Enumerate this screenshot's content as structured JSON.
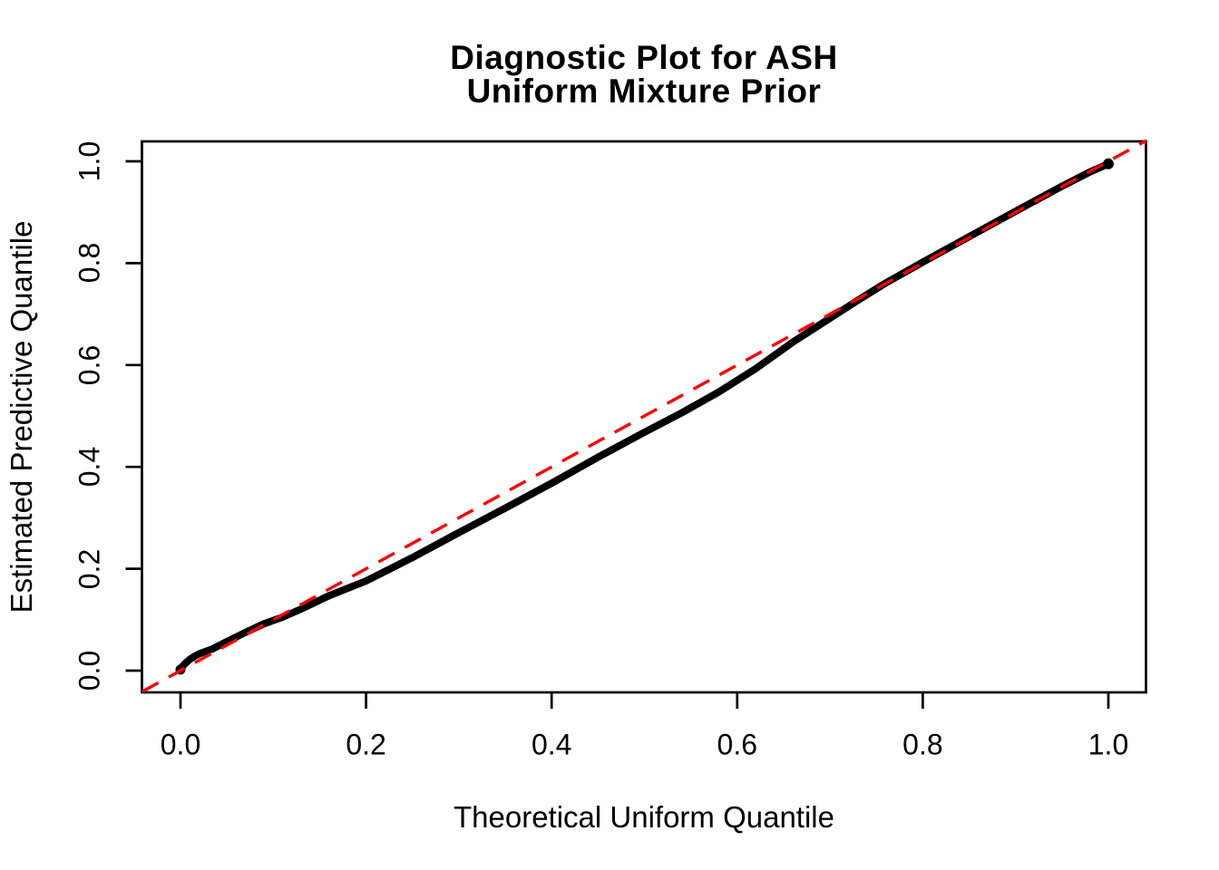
{
  "chart_data": {
    "type": "scatter",
    "title_lines": [
      "Diagnostic Plot for ASH",
      "Uniform Mixture Prior"
    ],
    "xlabel": "Theoretical Uniform Quantile",
    "ylabel": "Estimated Predictive Quantile",
    "xlim": [
      -0.042,
      1.042
    ],
    "ylim": [
      -0.042,
      1.042
    ],
    "x_tick_values": [
      0.0,
      0.2,
      0.4,
      0.6,
      0.8,
      1.0
    ],
    "y_tick_values": [
      0.0,
      0.2,
      0.4,
      0.6,
      0.8,
      1.0
    ],
    "x_tick_labels": [
      "0.0",
      "0.2",
      "0.4",
      "0.6",
      "0.8",
      "1.0"
    ],
    "y_tick_labels": [
      "0.0",
      "0.2",
      "0.4",
      "0.6",
      "0.8",
      "1.0"
    ],
    "grid": false,
    "legend": "none",
    "colors": {
      "points": "#000000",
      "reference_line": "#FF0000",
      "axis": "#000000",
      "background": "#FFFFFF"
    },
    "series": [
      {
        "name": "estimated-vs-theoretical-quantiles",
        "style": "dense-points",
        "color": "#000000",
        "points": [
          [
            0.0,
            0.002
          ],
          [
            0.002,
            0.008
          ],
          [
            0.005,
            0.014
          ],
          [
            0.01,
            0.022
          ],
          [
            0.015,
            0.028
          ],
          [
            0.02,
            0.033
          ],
          [
            0.035,
            0.043
          ],
          [
            0.05,
            0.057
          ],
          [
            0.07,
            0.075
          ],
          [
            0.09,
            0.092
          ],
          [
            0.11,
            0.105
          ],
          [
            0.13,
            0.121
          ],
          [
            0.16,
            0.147
          ],
          [
            0.2,
            0.176
          ],
          [
            0.25,
            0.222
          ],
          [
            0.3,
            0.271
          ],
          [
            0.35,
            0.319
          ],
          [
            0.4,
            0.368
          ],
          [
            0.45,
            0.419
          ],
          [
            0.5,
            0.468
          ],
          [
            0.54,
            0.506
          ],
          [
            0.58,
            0.547
          ],
          [
            0.62,
            0.593
          ],
          [
            0.66,
            0.645
          ],
          [
            0.7,
            0.692
          ],
          [
            0.73,
            0.727
          ],
          [
            0.76,
            0.761
          ],
          [
            0.8,
            0.802
          ],
          [
            0.85,
            0.852
          ],
          [
            0.9,
            0.902
          ],
          [
            0.95,
            0.951
          ],
          [
            0.98,
            0.979
          ],
          [
            1.0,
            0.995
          ]
        ]
      },
      {
        "name": "reference-line-y-equals-x",
        "style": "dashed-line",
        "color": "#FF0000",
        "points": [
          [
            -0.041,
            -0.041
          ],
          [
            1.041,
            1.041
          ]
        ]
      }
    ]
  }
}
